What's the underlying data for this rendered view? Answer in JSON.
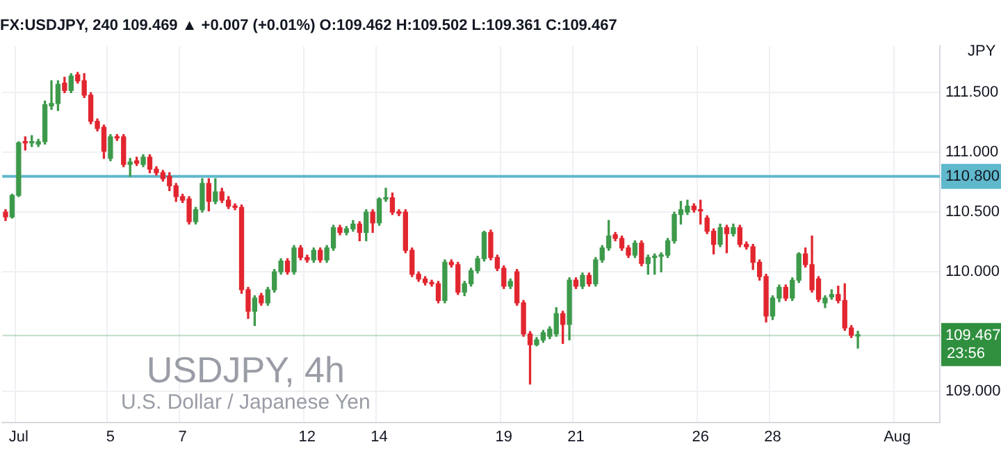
{
  "chart_data": {
    "type": "candlestick",
    "title": "FX:USDJPY, 240 109.469 ▲ +0.007 (+0.01%) O:109.462 H:109.502 L:109.361 C:109.467",
    "ylabel": "JPY",
    "annotations": [
      "USDJPY, 4h",
      "U.S. Dollar / Japanese Yen",
      "23:56"
    ],
    "categories": [
      null,
      null,
      "Jul",
      null,
      null,
      null,
      null,
      null,
      null,
      null,
      null,
      null,
      null,
      null,
      null,
      null,
      "5",
      null,
      null,
      null,
      null,
      null,
      null,
      null,
      null,
      null,
      null,
      "7",
      null,
      null,
      null,
      null,
      null,
      null,
      null,
      null,
      null,
      null,
      null,
      null,
      null,
      null,
      null,
      null,
      null,
      null,
      "12",
      null,
      null,
      null,
      null,
      null,
      null,
      null,
      null,
      null,
      null,
      "14",
      null,
      null,
      null,
      null,
      null,
      null,
      null,
      null,
      null,
      null,
      null,
      null,
      null,
      null,
      null,
      null,
      null,
      null,
      "19",
      null,
      null,
      null,
      null,
      null,
      null,
      null,
      null,
      null,
      null,
      "21",
      null,
      null,
      null,
      null,
      null,
      null,
      null,
      null,
      null,
      null,
      null,
      null,
      null,
      null,
      null,
      null,
      null,
      null,
      "26",
      null,
      null,
      null,
      null,
      null,
      null,
      null,
      null,
      null,
      null,
      "28",
      null,
      null,
      null,
      null,
      null,
      null,
      null,
      null,
      null,
      null,
      null,
      null,
      null,
      null,
      null,
      null,
      null,
      null,
      "Aug",
      null,
      null,
      null,
      null,
      null,
      null
    ],
    "ohlc": [
      [
        110.5,
        110.52,
        110.43,
        110.46
      ],
      [
        110.46,
        110.65,
        110.45,
        110.64
      ],
      [
        110.64,
        111.09,
        110.63,
        111.08
      ],
      [
        111.09,
        111.13,
        111.02,
        111.08
      ],
      [
        111.08,
        111.14,
        111.05,
        111.09
      ],
      [
        111.07,
        111.11,
        111.05,
        111.09
      ],
      [
        111.09,
        111.43,
        111.07,
        111.4
      ],
      [
        111.39,
        111.6,
        111.36,
        111.41
      ],
      [
        111.41,
        111.6,
        111.35,
        111.57
      ],
      [
        111.58,
        111.63,
        111.5,
        111.52
      ],
      [
        111.52,
        111.66,
        111.5,
        111.64
      ],
      [
        111.65,
        111.67,
        111.58,
        111.6
      ],
      [
        111.6,
        111.66,
        111.46,
        111.48
      ],
      [
        111.48,
        111.5,
        111.24,
        111.26
      ],
      [
        111.26,
        111.28,
        111.18,
        111.2
      ],
      [
        111.21,
        111.23,
        110.95,
        111.01
      ],
      [
        110.95,
        111.15,
        110.93,
        111.13
      ],
      [
        111.13,
        111.15,
        111.1,
        111.12
      ],
      [
        111.13,
        111.15,
        110.88,
        110.9
      ],
      [
        110.9,
        110.95,
        110.8,
        110.92
      ],
      [
        110.93,
        110.96,
        110.89,
        110.91
      ],
      [
        110.9,
        110.98,
        110.88,
        110.96
      ],
      [
        110.96,
        110.98,
        110.83,
        110.86
      ],
      [
        110.86,
        110.88,
        110.81,
        110.83
      ],
      [
        110.83,
        110.85,
        110.76,
        110.78
      ],
      [
        110.8,
        110.83,
        110.68,
        110.72
      ],
      [
        110.72,
        110.74,
        110.59,
        110.63
      ],
      [
        110.63,
        110.65,
        110.58,
        110.6
      ],
      [
        110.61,
        110.63,
        110.4,
        110.42
      ],
      [
        110.42,
        110.54,
        110.4,
        110.52
      ],
      [
        110.52,
        110.78,
        110.5,
        110.74
      ],
      [
        110.74,
        110.78,
        110.51,
        110.59
      ],
      [
        110.59,
        110.78,
        110.57,
        110.67
      ],
      [
        110.67,
        110.7,
        110.58,
        110.6
      ],
      [
        110.6,
        110.63,
        110.53,
        110.55
      ],
      [
        110.55,
        110.57,
        110.52,
        110.54
      ],
      [
        110.54,
        110.56,
        109.82,
        109.85
      ],
      [
        109.85,
        109.87,
        109.61,
        109.67
      ],
      [
        109.67,
        109.8,
        109.55,
        109.78
      ],
      [
        109.8,
        109.82,
        109.72,
        109.74
      ],
      [
        109.74,
        109.87,
        109.72,
        109.85
      ],
      [
        109.85,
        110.02,
        109.83,
        110.0
      ],
      [
        110.0,
        110.11,
        109.98,
        110.09
      ],
      [
        110.09,
        110.11,
        109.98,
        110.0
      ],
      [
        110.0,
        110.22,
        109.98,
        110.2
      ],
      [
        110.2,
        110.22,
        110.1,
        110.12
      ],
      [
        110.12,
        110.14,
        110.08,
        110.1
      ],
      [
        110.1,
        110.2,
        110.08,
        110.18
      ],
      [
        110.18,
        110.2,
        110.08,
        110.1
      ],
      [
        110.1,
        110.22,
        110.08,
        110.2
      ],
      [
        110.2,
        110.39,
        110.18,
        110.37
      ],
      [
        110.37,
        110.39,
        110.31,
        110.33
      ],
      [
        110.33,
        110.38,
        110.31,
        110.36
      ],
      [
        110.36,
        110.43,
        110.34,
        110.4
      ],
      [
        110.4,
        110.42,
        110.26,
        110.33
      ],
      [
        110.33,
        110.52,
        110.26,
        110.5
      ],
      [
        110.5,
        110.52,
        110.33,
        110.41
      ],
      [
        110.41,
        110.62,
        110.39,
        110.61
      ],
      [
        110.61,
        110.7,
        110.59,
        110.62
      ],
      [
        110.62,
        110.66,
        110.48,
        110.5
      ],
      [
        110.5,
        110.52,
        110.47,
        110.49
      ],
      [
        110.5,
        110.52,
        110.16,
        110.18
      ],
      [
        110.18,
        110.2,
        109.96,
        109.98
      ],
      [
        109.98,
        110.0,
        109.92,
        109.94
      ],
      [
        109.94,
        109.96,
        109.89,
        109.91
      ],
      [
        109.91,
        109.93,
        109.88,
        109.9
      ],
      [
        109.9,
        109.92,
        109.74,
        109.76
      ],
      [
        109.76,
        110.1,
        109.74,
        110.08
      ],
      [
        110.08,
        110.1,
        110.04,
        110.06
      ],
      [
        110.06,
        110.08,
        109.81,
        109.83
      ],
      [
        109.83,
        109.92,
        109.8,
        109.9
      ],
      [
        109.9,
        110.03,
        109.88,
        110.01
      ],
      [
        110.01,
        110.13,
        109.99,
        110.11
      ],
      [
        110.11,
        110.34,
        110.09,
        110.33
      ],
      [
        110.33,
        110.35,
        110.1,
        110.12
      ],
      [
        110.12,
        110.14,
        110.01,
        110.03
      ],
      [
        110.03,
        110.05,
        109.86,
        109.88
      ],
      [
        109.88,
        109.94,
        109.86,
        109.92
      ],
      [
        110.0,
        110.02,
        109.72,
        109.74
      ],
      [
        109.74,
        109.76,
        109.46,
        109.48
      ],
      [
        109.48,
        109.5,
        109.06,
        109.39
      ],
      [
        109.39,
        109.45,
        109.38,
        109.43
      ],
      [
        109.43,
        109.51,
        109.41,
        109.49
      ],
      [
        109.46,
        109.54,
        109.44,
        109.52
      ],
      [
        109.48,
        109.7,
        109.46,
        109.65
      ],
      [
        109.65,
        109.67,
        109.4,
        109.56
      ],
      [
        109.56,
        109.95,
        109.43,
        109.93
      ],
      [
        109.93,
        109.95,
        109.86,
        109.88
      ],
      [
        109.88,
        109.99,
        109.86,
        109.97
      ],
      [
        109.97,
        109.99,
        109.88,
        109.9
      ],
      [
        109.9,
        110.12,
        109.88,
        110.1
      ],
      [
        110.1,
        110.22,
        110.08,
        110.2
      ],
      [
        110.2,
        110.43,
        110.18,
        110.3
      ],
      [
        110.31,
        110.33,
        110.26,
        110.28
      ],
      [
        110.28,
        110.3,
        110.18,
        110.2
      ],
      [
        110.2,
        110.22,
        110.12,
        110.14
      ],
      [
        110.14,
        110.26,
        110.12,
        110.24
      ],
      [
        110.24,
        110.26,
        110.05,
        110.07
      ],
      [
        110.07,
        110.14,
        109.98,
        110.12
      ],
      [
        110.12,
        110.15,
        109.98,
        110.13
      ],
      [
        110.13,
        110.16,
        110.0,
        110.14
      ],
      [
        110.14,
        110.28,
        110.12,
        110.26
      ],
      [
        110.26,
        110.5,
        110.24,
        110.48
      ],
      [
        110.48,
        110.59,
        110.4,
        110.52
      ],
      [
        110.5,
        110.6,
        110.48,
        110.55
      ],
      [
        110.55,
        110.57,
        110.5,
        110.52
      ],
      [
        110.52,
        110.6,
        110.4,
        110.51
      ],
      [
        110.45,
        110.47,
        110.32,
        110.34
      ],
      [
        110.34,
        110.36,
        110.15,
        110.23
      ],
      [
        110.23,
        110.4,
        110.21,
        110.37
      ],
      [
        110.37,
        110.39,
        110.16,
        110.32
      ],
      [
        110.32,
        110.4,
        110.3,
        110.37
      ],
      [
        110.37,
        110.39,
        110.21,
        110.23
      ],
      [
        110.23,
        110.25,
        110.19,
        110.21
      ],
      [
        110.21,
        110.23,
        110.02,
        110.08
      ],
      [
        110.08,
        110.1,
        109.93,
        109.96
      ],
      [
        109.96,
        109.98,
        109.58,
        109.63
      ],
      [
        109.63,
        109.8,
        109.6,
        109.78
      ],
      [
        109.78,
        109.89,
        109.75,
        109.87
      ],
      [
        109.87,
        109.89,
        109.76,
        109.78
      ],
      [
        109.78,
        109.95,
        109.76,
        109.93
      ],
      [
        109.93,
        110.16,
        109.91,
        110.15
      ],
      [
        110.15,
        110.2,
        110.04,
        110.06
      ],
      [
        110.06,
        110.3,
        109.83,
        109.85
      ],
      [
        109.94,
        109.96,
        109.75,
        109.77
      ],
      [
        109.74,
        109.8,
        109.7,
        109.78
      ],
      [
        109.79,
        109.85,
        109.77,
        109.81
      ],
      [
        109.81,
        109.88,
        109.74,
        109.76
      ],
      [
        109.76,
        109.9,
        109.51,
        109.53
      ],
      [
        109.53,
        109.55,
        109.45,
        109.47
      ],
      [
        109.462,
        109.502,
        109.361,
        109.467
      ],
      null,
      null,
      null,
      null,
      null,
      null,
      null,
      null,
      null,
      null,
      null,
      null
    ],
    "colors": [
      "#e2262f",
      "#3d9a4b",
      "#3d9a4b",
      "#e2262f",
      "#3d9a4b",
      "#3d9a4b",
      "#3d9a4b",
      "#3d9a4b",
      "#3d9a4b",
      "#e2262f",
      "#3d9a4b",
      "#e2262f",
      "#e2262f",
      "#e2262f",
      "#e2262f",
      "#e2262f",
      "#3d9a4b",
      "#e2262f",
      "#e2262f",
      "#3d9a4b",
      "#e2262f",
      "#3d9a4b",
      "#e2262f",
      "#e2262f",
      "#e2262f",
      "#e2262f",
      "#e2262f",
      "#e2262f",
      "#e2262f",
      "#3d9a4b",
      "#3d9a4b",
      "#e2262f",
      "#3d9a4b",
      "#e2262f",
      "#e2262f",
      "#e2262f",
      "#e2262f",
      "#e2262f",
      "#3d9a4b",
      "#e2262f",
      "#3d9a4b",
      "#3d9a4b",
      "#3d9a4b",
      "#e2262f",
      "#3d9a4b",
      "#e2262f",
      "#e2262f",
      "#3d9a4b",
      "#e2262f",
      "#3d9a4b",
      "#3d9a4b",
      "#e2262f",
      "#3d9a4b",
      "#3d9a4b",
      "#e2262f",
      "#3d9a4b",
      "#e2262f",
      "#3d9a4b",
      "#3d9a4b",
      "#e2262f",
      "#e2262f",
      "#e2262f",
      "#e2262f",
      "#e2262f",
      "#e2262f",
      "#e2262f",
      "#e2262f",
      "#3d9a4b",
      "#e2262f",
      "#e2262f",
      "#3d9a4b",
      "#3d9a4b",
      "#3d9a4b",
      "#3d9a4b",
      "#e2262f",
      "#e2262f",
      "#e2262f",
      "#3d9a4b",
      "#e2262f",
      "#e2262f",
      "#e2262f",
      "#3d9a4b",
      "#3d9a4b",
      "#3d9a4b",
      "#3d9a4b",
      "#e2262f",
      "#3d9a4b",
      "#e2262f",
      "#3d9a4b",
      "#e2262f",
      "#3d9a4b",
      "#3d9a4b",
      "#3d9a4b",
      "#e2262f",
      "#e2262f",
      "#e2262f",
      "#3d9a4b",
      "#e2262f",
      "#3d9a4b",
      "#3d9a4b",
      "#3d9a4b",
      "#3d9a4b",
      "#3d9a4b",
      "#3d9a4b",
      "#3d9a4b",
      "#e2262f",
      "#e2262f",
      "#e2262f",
      "#e2262f",
      "#3d9a4b",
      "#e2262f",
      "#3d9a4b",
      "#e2262f",
      "#e2262f",
      "#e2262f",
      "#e2262f",
      "#e2262f",
      "#3d9a4b",
      "#3d9a4b",
      "#e2262f",
      "#3d9a4b",
      "#3d9a4b",
      "#e2262f",
      "#e2262f",
      "#e2262f",
      "#3d9a4b",
      "#3d9a4b",
      "#e2262f",
      "#e2262f",
      "#e2262f",
      "#3d9a4b",
      null,
      null,
      null,
      null,
      null,
      null,
      null,
      null,
      null,
      null,
      null,
      null
    ],
    "ylim": [
      108.74,
      111.89
    ],
    "yticks": [
      {
        "value": 109,
        "label": "109.000"
      },
      {
        "value": 110,
        "label": "110.000"
      },
      {
        "value": 110.5,
        "label": "110.500"
      },
      {
        "value": 111,
        "label": "111.000"
      },
      {
        "value": 111.5,
        "label": "111.500"
      }
    ],
    "ref_lines": [
      {
        "axis": "y",
        "value": 110.8,
        "label": "110.800",
        "color": "#5fb8cc"
      },
      {
        "axis": "y",
        "value": 109.467,
        "label": "109.467",
        "color": "#2f8f3e"
      }
    ],
    "grid": true
  }
}
